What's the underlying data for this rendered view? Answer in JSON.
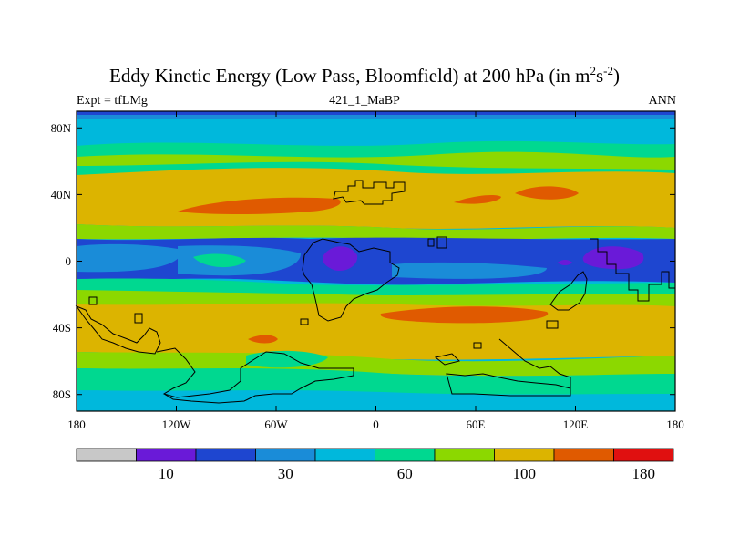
{
  "title": {
    "prefix": "Eddy Kinetic Energy (Low Pass, Bloomfield) at 200 hPa (in m",
    "sup1": "2",
    "mid": "s",
    "sup2": "-2",
    "suffix": ")"
  },
  "subtitle_left": "Expt = tfLMg",
  "subtitle_center": "421_1_MaBP",
  "subtitle_right": "ANN",
  "x_ticks": [
    {
      "label": "180",
      "lon": -180
    },
    {
      "label": "120W",
      "lon": -120
    },
    {
      "label": "60W",
      "lon": -60
    },
    {
      "label": "0",
      "lon": 0
    },
    {
      "label": "60E",
      "lon": 60
    },
    {
      "label": "120E",
      "lon": 120
    },
    {
      "label": "180",
      "lon": 180
    }
  ],
  "y_ticks": [
    {
      "label": "80N",
      "lat": 80
    },
    {
      "label": "40N",
      "lat": 40
    },
    {
      "label": "0",
      "lat": 0
    },
    {
      "label": "40S",
      "lat": -40
    },
    {
      "label": "80S",
      "lat": -80
    }
  ],
  "colorbar": {
    "colors": [
      "#c8c8c8",
      "#6a1ad8",
      "#1e46d0",
      "#1a8cd8",
      "#00b8dc",
      "#00d890",
      "#8cd800",
      "#dcb400",
      "#e05a00",
      "#e01010"
    ],
    "labels": [
      {
        "text": "10",
        "boundary": 2
      },
      {
        "text": "30",
        "boundary": 4
      },
      {
        "text": "60",
        "boundary": 6
      },
      {
        "text": "100",
        "boundary": 8
      },
      {
        "text": "180",
        "boundary": 10
      }
    ]
  }
}
